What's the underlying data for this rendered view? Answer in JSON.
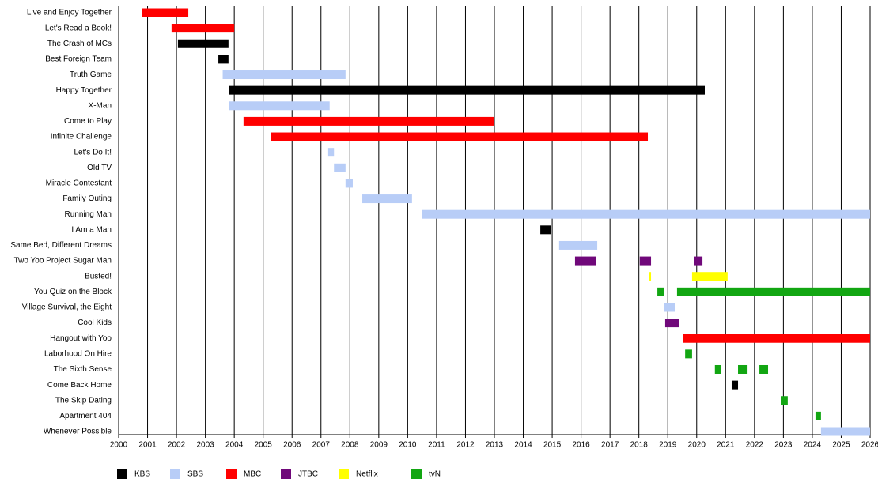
{
  "chart_data": {
    "type": "timeline",
    "categories": [
      "Live and Enjoy Together",
      "Let's Read a Book!",
      "The Crash of MCs",
      "Best Foreign Team",
      "Truth Game",
      "Happy Together",
      "X-Man",
      "Come to Play",
      "Infinite Challenge",
      "Let's Do It!",
      "Old TV",
      "Miracle Contestant",
      "Family Outing",
      "Running Man",
      "I Am a Man",
      "Same Bed, Different Dreams",
      "Two Yoo Project Sugar Man",
      "Busted!",
      "You Quiz on the Block",
      "Village Survival, the Eight",
      "Cool Kids",
      "Hangout with Yoo",
      "Laborhood On Hire",
      "The Sixth Sense",
      "Come Back Home",
      "The Skip Dating",
      "Apartment 404",
      "Whenever Possible"
    ],
    "xlim": [
      2000,
      2026
    ],
    "xticks": [
      2000,
      2001,
      2002,
      2003,
      2004,
      2005,
      2006,
      2007,
      2008,
      2009,
      2010,
      2011,
      2012,
      2013,
      2014,
      2015,
      2016,
      2017,
      2018,
      2019,
      2020,
      2021,
      2022,
      2023,
      2024,
      2025,
      2026
    ],
    "grid": true,
    "series": [
      {
        "name": "KBS",
        "color": "#000000",
        "values": [
          null,
          null,
          [
            [
              2002.05,
              2003.8
            ]
          ],
          [
            [
              2003.45,
              2003.8
            ]
          ],
          null,
          [
            [
              2003.83,
              2020.28
            ]
          ],
          null,
          null,
          null,
          null,
          null,
          null,
          null,
          null,
          [
            [
              2014.59,
              2014.97
            ]
          ],
          null,
          null,
          null,
          null,
          null,
          null,
          null,
          null,
          null,
          [
            [
              2021.21,
              2021.43
            ]
          ],
          null,
          null,
          null
        ]
      },
      {
        "name": "SBS",
        "color": "#b8cdf7",
        "values": [
          null,
          null,
          null,
          null,
          [
            [
              2003.6,
              2007.85
            ]
          ],
          null,
          [
            [
              2003.83,
              2007.3
            ]
          ],
          null,
          null,
          [
            [
              2007.25,
              2007.45
            ]
          ],
          [
            [
              2007.45,
              2007.85
            ]
          ],
          [
            [
              2007.85,
              2008.1
            ]
          ],
          [
            [
              2008.43,
              2010.15
            ]
          ],
          [
            [
              2010.5,
              2026
            ]
          ],
          null,
          [
            [
              2015.24,
              2016.56
            ]
          ],
          null,
          null,
          null,
          [
            [
              2018.86,
              2019.24
            ]
          ],
          null,
          null,
          null,
          null,
          null,
          null,
          null,
          [
            [
              2024.3,
              2026
            ]
          ]
        ]
      },
      {
        "name": "MBC",
        "color": "#ff0000",
        "values": [
          [
            [
              2000.82,
              2002.41
            ]
          ],
          [
            [
              2001.83,
              2004.0
            ]
          ],
          null,
          null,
          null,
          null,
          null,
          [
            [
              2004.32,
              2013.0
            ]
          ],
          [
            [
              2005.28,
              2018.31
            ]
          ],
          null,
          null,
          null,
          null,
          null,
          null,
          null,
          null,
          null,
          null,
          null,
          null,
          [
            [
              2019.54,
              2026
            ]
          ],
          null,
          null,
          null,
          null,
          null,
          null
        ]
      },
      {
        "name": "JTBC",
        "color": "#70087a",
        "values": [
          null,
          null,
          null,
          null,
          null,
          null,
          null,
          null,
          null,
          null,
          null,
          null,
          null,
          null,
          null,
          null,
          [
            [
              2015.79,
              2016.53
            ],
            [
              2018.03,
              2018.42
            ],
            [
              2019.9,
              2020.2
            ]
          ],
          null,
          null,
          null,
          [
            [
              2018.91,
              2019.38
            ]
          ],
          null,
          null,
          null,
          null,
          null,
          null,
          null
        ]
      },
      {
        "name": "Netflix",
        "color": "#ffff00",
        "values": [
          null,
          null,
          null,
          null,
          null,
          null,
          null,
          null,
          null,
          null,
          null,
          null,
          null,
          null,
          null,
          null,
          null,
          [
            [
              2018.34,
              2018.42
            ],
            [
              2019.84,
              2021.07
            ]
          ],
          null,
          null,
          null,
          null,
          null,
          null,
          null,
          null,
          null,
          null
        ]
      },
      {
        "name": "tvN",
        "color": "#12a612",
        "values": [
          null,
          null,
          null,
          null,
          null,
          null,
          null,
          null,
          null,
          null,
          null,
          null,
          null,
          null,
          null,
          null,
          null,
          null,
          [
            [
              2018.64,
              2018.88
            ],
            [
              2019.32,
              2026
            ]
          ],
          null,
          null,
          null,
          [
            [
              2019.6,
              2019.84
            ]
          ],
          [
            [
              2020.63,
              2020.85
            ],
            [
              2021.43,
              2021.76
            ],
            [
              2022.17,
              2022.47
            ]
          ],
          null,
          [
            [
              2022.93,
              2023.15
            ]
          ],
          [
            [
              2024.11,
              2024.3
            ]
          ],
          null
        ]
      }
    ]
  }
}
